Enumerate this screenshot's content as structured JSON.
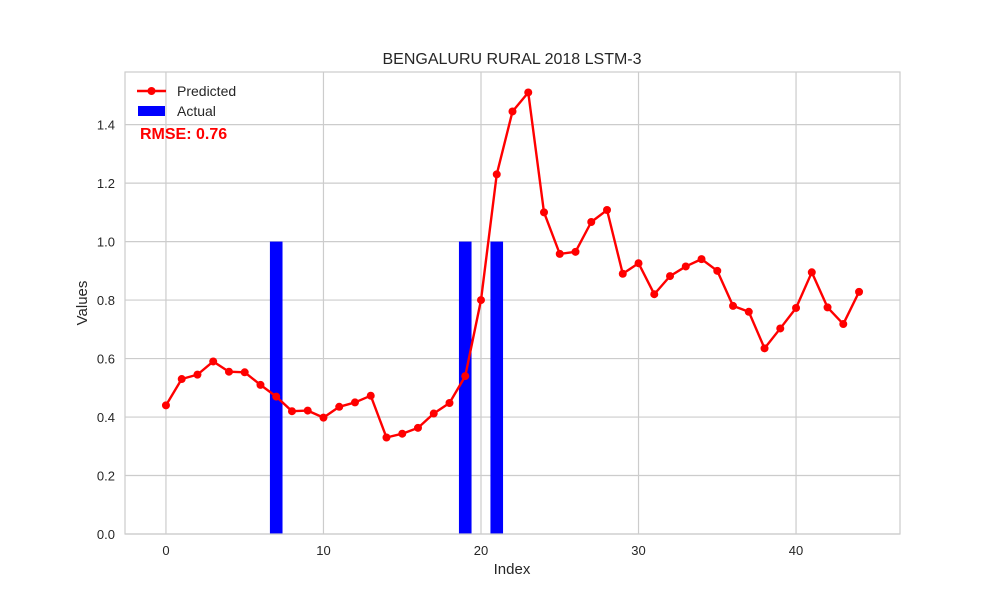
{
  "chart_data": {
    "type": "line",
    "title": "BENGALURU RURAL 2018 LSTM-3",
    "xlabel": "Index",
    "ylabel": "Values",
    "xlim": [
      -2.6,
      46.6
    ],
    "ylim": [
      0.0,
      1.58
    ],
    "xticks": [
      0,
      10,
      20,
      30,
      40
    ],
    "yticks": [
      0.0,
      0.2,
      0.4,
      0.6,
      0.8,
      1.0,
      1.2,
      1.4
    ],
    "grid": true,
    "legend_position": "top-left",
    "annotation": "RMSE: 0.76",
    "series": [
      {
        "name": "Predicted",
        "kind": "line",
        "color": "#ff0000",
        "x": [
          0,
          1,
          2,
          3,
          4,
          5,
          6,
          7,
          8,
          9,
          10,
          11,
          12,
          13,
          14,
          15,
          16,
          17,
          18,
          19,
          20,
          21,
          22,
          23,
          24,
          25,
          26,
          27,
          28,
          29,
          30,
          31,
          32,
          33,
          34,
          35,
          36,
          37,
          38,
          39,
          40,
          41,
          42,
          43,
          44
        ],
        "values": [
          0.44,
          0.53,
          0.545,
          0.59,
          0.555,
          0.553,
          0.51,
          0.47,
          0.42,
          0.422,
          0.398,
          0.435,
          0.45,
          0.473,
          0.33,
          0.343,
          0.363,
          0.412,
          0.448,
          0.54,
          0.8,
          1.23,
          1.445,
          1.51,
          1.1,
          0.958,
          0.965,
          1.067,
          1.108,
          0.89,
          0.926,
          0.82,
          0.882,
          0.915,
          0.94,
          0.9,
          0.78,
          0.76,
          0.635,
          0.703,
          0.773,
          0.895,
          0.775,
          0.718,
          0.828
        ]
      },
      {
        "name": "Actual",
        "kind": "bar",
        "color": "#0000ff",
        "x": [
          7,
          19,
          21
        ],
        "values": [
          1.0,
          1.0,
          1.0
        ]
      }
    ]
  }
}
